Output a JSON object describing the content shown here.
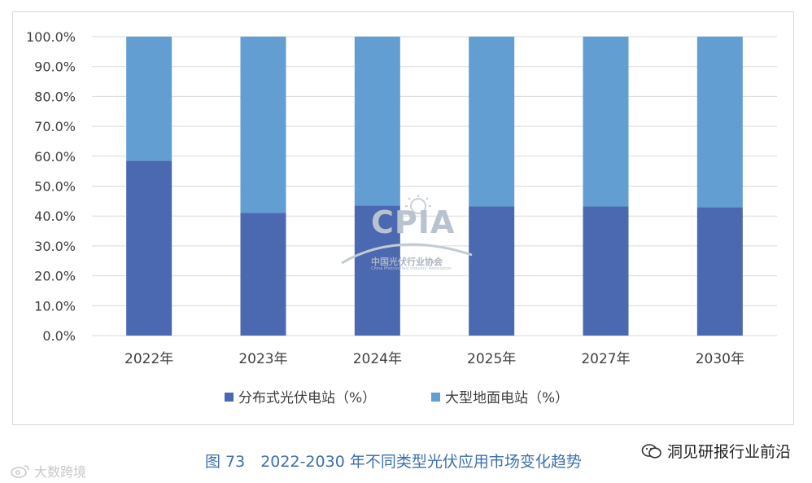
{
  "chart_data": {
    "type": "bar",
    "stacked": true,
    "categories": [
      "2022年",
      "2023年",
      "2024年",
      "2025年",
      "2027年",
      "2030年"
    ],
    "series": [
      {
        "name": "分布式光伏电站（%）",
        "color": "#4a69b0",
        "values": [
          58.5,
          41.0,
          43.5,
          43.2,
          43.2,
          42.9
        ]
      },
      {
        "name": "大型地面电站（%）",
        "color": "#629ed2",
        "values": [
          41.5,
          59.0,
          56.5,
          56.8,
          56.8,
          57.1
        ]
      }
    ],
    "ylim": [
      0,
      100
    ],
    "yticks": [
      "0.0%",
      "10.0%",
      "20.0%",
      "30.0%",
      "40.0%",
      "50.0%",
      "60.0%",
      "70.0%",
      "80.0%",
      "90.0%",
      "100.0%"
    ],
    "grid": true,
    "legend_position": "bottom"
  },
  "caption": "图 73　2022-2030 年不同类型光伏应用市场变化趋势",
  "watermark": {
    "logo": "CPIA",
    "org": "中国光伏行业协会",
    "org_en": "China Photovoltaic Industry Association"
  },
  "wechat_source": "洞见研报行业前沿",
  "weibo_source": "大数跨境",
  "icons": [
    "wechat-icon",
    "weibo-icon"
  ]
}
